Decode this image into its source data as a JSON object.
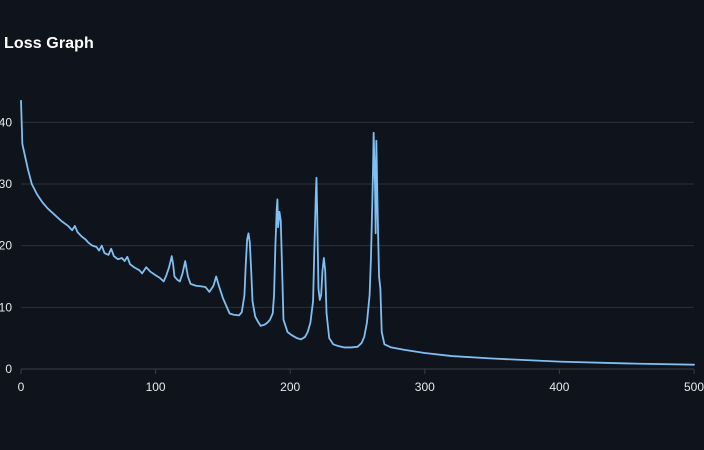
{
  "chart_data": {
    "type": "line",
    "title": "Loss Graph",
    "xlabel": "",
    "ylabel": "",
    "xlim": [
      0,
      500
    ],
    "ylim": [
      0,
      45
    ],
    "x_ticks": [
      0,
      100,
      200,
      300,
      400,
      500
    ],
    "y_ticks": [
      0,
      10,
      20,
      30,
      40
    ],
    "grid": true,
    "line_color": "#7fbff2",
    "grid_color": "#2b313c",
    "background": "#0f131b",
    "series": [
      {
        "points": [
          [
            0,
            43.5
          ],
          [
            1,
            36.5
          ],
          [
            3,
            34.5
          ],
          [
            5,
            32.5
          ],
          [
            8,
            30
          ],
          [
            12,
            28.3
          ],
          [
            16,
            27
          ],
          [
            20,
            26
          ],
          [
            25,
            25
          ],
          [
            30,
            24
          ],
          [
            35,
            23.2
          ],
          [
            38,
            22.5
          ],
          [
            40,
            23.2
          ],
          [
            42,
            22.2
          ],
          [
            45,
            21.5
          ],
          [
            48,
            21
          ],
          [
            50,
            20.5
          ],
          [
            53,
            20
          ],
          [
            56,
            19.8
          ],
          [
            58,
            19.2
          ],
          [
            60,
            20
          ],
          [
            62,
            18.8
          ],
          [
            65,
            18.5
          ],
          [
            67,
            19.5
          ],
          [
            69,
            18.3
          ],
          [
            72,
            17.8
          ],
          [
            75,
            18
          ],
          [
            77,
            17.5
          ],
          [
            79,
            18.2
          ],
          [
            81,
            17
          ],
          [
            84,
            16.5
          ],
          [
            88,
            16
          ],
          [
            90,
            15.5
          ],
          [
            93,
            16.5
          ],
          [
            96,
            15.8
          ],
          [
            100,
            15.2
          ],
          [
            103,
            14.8
          ],
          [
            106,
            14.2
          ],
          [
            108,
            15.2
          ],
          [
            110,
            16.5
          ],
          [
            112,
            18.3
          ],
          [
            113,
            17
          ],
          [
            114,
            15
          ],
          [
            116,
            14.5
          ],
          [
            118,
            14.2
          ],
          [
            120,
            15.5
          ],
          [
            122,
            17.5
          ],
          [
            124,
            15
          ],
          [
            126,
            13.8
          ],
          [
            130,
            13.5
          ],
          [
            134,
            13.4
          ],
          [
            137,
            13.3
          ],
          [
            140,
            12.5
          ],
          [
            143,
            13.5
          ],
          [
            145,
            15
          ],
          [
            147,
            13.5
          ],
          [
            150,
            11.5
          ],
          [
            152,
            10.5
          ],
          [
            155,
            9
          ],
          [
            158,
            8.8
          ],
          [
            162,
            8.7
          ],
          [
            164,
            9.2
          ],
          [
            166,
            12
          ],
          [
            167,
            17
          ],
          [
            168,
            21
          ],
          [
            169,
            22
          ],
          [
            170,
            20.5
          ],
          [
            171,
            16
          ],
          [
            172,
            11
          ],
          [
            174,
            8.5
          ],
          [
            176,
            7.7
          ],
          [
            178,
            7
          ],
          [
            181,
            7.2
          ],
          [
            183,
            7.5
          ],
          [
            185,
            8
          ],
          [
            187,
            9
          ],
          [
            188,
            12
          ],
          [
            189,
            20
          ],
          [
            190,
            26
          ],
          [
            190.5,
            27.5
          ],
          [
            191,
            23
          ],
          [
            192,
            25.5
          ],
          [
            193,
            24
          ],
          [
            194,
            16
          ],
          [
            195,
            8
          ],
          [
            198,
            6
          ],
          [
            201,
            5.5
          ],
          [
            205,
            5
          ],
          [
            208,
            4.8
          ],
          [
            211,
            5.2
          ],
          [
            213,
            6
          ],
          [
            215,
            7.5
          ],
          [
            217,
            11
          ],
          [
            218,
            20
          ],
          [
            219,
            28
          ],
          [
            219.5,
            31
          ],
          [
            220,
            26
          ],
          [
            221,
            13
          ],
          [
            222,
            11.2
          ],
          [
            223,
            12
          ],
          [
            224,
            16
          ],
          [
            225,
            18
          ],
          [
            226,
            16
          ],
          [
            227,
            9
          ],
          [
            229,
            5
          ],
          [
            232,
            4
          ],
          [
            236,
            3.7
          ],
          [
            240,
            3.5
          ],
          [
            245,
            3.5
          ],
          [
            250,
            3.6
          ],
          [
            253,
            4.2
          ],
          [
            255,
            5.2
          ],
          [
            257,
            7.5
          ],
          [
            259,
            12
          ],
          [
            260,
            18
          ],
          [
            261,
            27
          ],
          [
            261.5,
            32
          ],
          [
            262,
            38.3
          ],
          [
            263,
            30
          ],
          [
            263.5,
            22
          ],
          [
            264,
            37
          ],
          [
            265,
            25
          ],
          [
            266,
            15
          ],
          [
            267,
            13
          ],
          [
            268,
            6
          ],
          [
            270,
            4
          ],
          [
            275,
            3.5
          ],
          [
            285,
            3.1
          ],
          [
            300,
            2.6
          ],
          [
            320,
            2.1
          ],
          [
            350,
            1.7
          ],
          [
            400,
            1.2
          ],
          [
            450,
            0.9
          ],
          [
            500,
            0.7
          ]
        ]
      }
    ]
  }
}
